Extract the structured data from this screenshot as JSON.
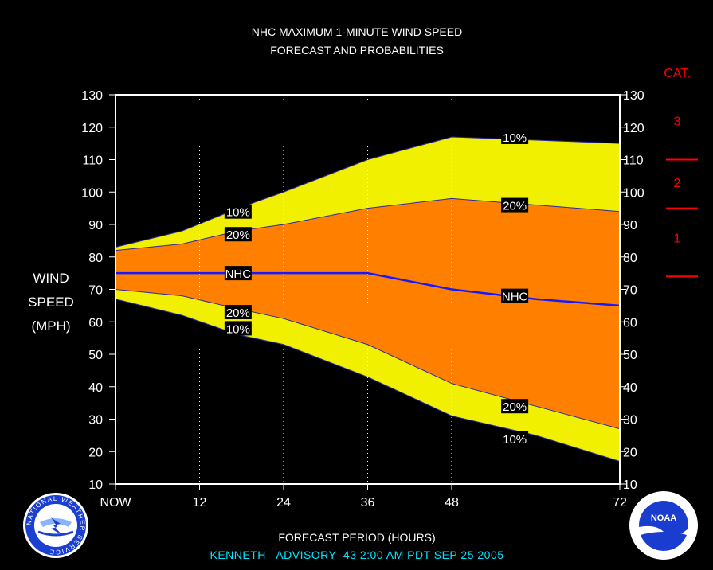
{
  "chart_data": {
    "type": "area",
    "title_line1": "NHC MAXIMUM 1-MINUTE WIND SPEED",
    "title_line2": "FORECAST AND PROBABILITIES",
    "ylabel_lines": [
      "WIND",
      "SPEED",
      "(MPH)"
    ],
    "xlabel": "FORECAST PERIOD (HOURS)",
    "ylim": [
      10,
      130
    ],
    "yticks": [
      10,
      20,
      30,
      40,
      50,
      60,
      70,
      80,
      90,
      100,
      110,
      120,
      130
    ],
    "xlim": [
      0,
      72
    ],
    "xticks": [
      {
        "x": 0,
        "label": "NOW"
      },
      {
        "x": 12,
        "label": "12"
      },
      {
        "x": 24,
        "label": "24"
      },
      {
        "x": 36,
        "label": "36"
      },
      {
        "x": 48,
        "label": "48"
      },
      {
        "x": 72,
        "label": "72"
      }
    ],
    "x": [
      0,
      9.5,
      17.5,
      24,
      36,
      48,
      60,
      72
    ],
    "upper_10": [
      83,
      88,
      95,
      100,
      110,
      117,
      116,
      115
    ],
    "upper_20": [
      82,
      84,
      88,
      90,
      95,
      98,
      96,
      94
    ],
    "nhc": [
      75,
      75,
      75,
      75,
      75,
      70,
      67,
      65
    ],
    "lower_20": [
      70,
      68,
      64,
      61,
      53,
      41,
      34,
      27
    ],
    "lower_10": [
      67,
      62,
      56,
      53,
      43,
      31,
      25,
      17
    ],
    "band_labels": [
      {
        "text": "10%",
        "x": 17.5,
        "y": 94
      },
      {
        "text": "20%",
        "x": 17.5,
        "y": 87
      },
      {
        "text": "NHC",
        "x": 17.5,
        "y": 75
      },
      {
        "text": "20%",
        "x": 17.5,
        "y": 63
      },
      {
        "text": "10%",
        "x": 17.5,
        "y": 58
      },
      {
        "text": "10%",
        "x": 57,
        "y": 117
      },
      {
        "text": "20%",
        "x": 57,
        "y": 96
      },
      {
        "text": "NHC",
        "x": 57,
        "y": 68
      },
      {
        "text": "20%",
        "x": 57,
        "y": 34
      },
      {
        "text": "10%",
        "x": 57,
        "y": 24
      }
    ],
    "category_header": "CAT.",
    "categories": [
      {
        "label": "3",
        "y": 122
      },
      {
        "label": "2",
        "y": 103
      },
      {
        "label": "1",
        "y": 86
      }
    ],
    "category_lines": [
      110,
      95,
      74
    ],
    "colors": {
      "outer_band": "#f0f000",
      "inner_band": "#ff8000",
      "nhc_line": "#1818ff",
      "category": "#ff0000",
      "advisory": "#00e5ff"
    }
  },
  "footer": {
    "advisory": "KENNETH   ADVISORY  43 2:00 AM PDT SEP 25 2005"
  },
  "logos": {
    "left": "NATIONAL WEATHER SERVICE",
    "right": "NOAA"
  }
}
